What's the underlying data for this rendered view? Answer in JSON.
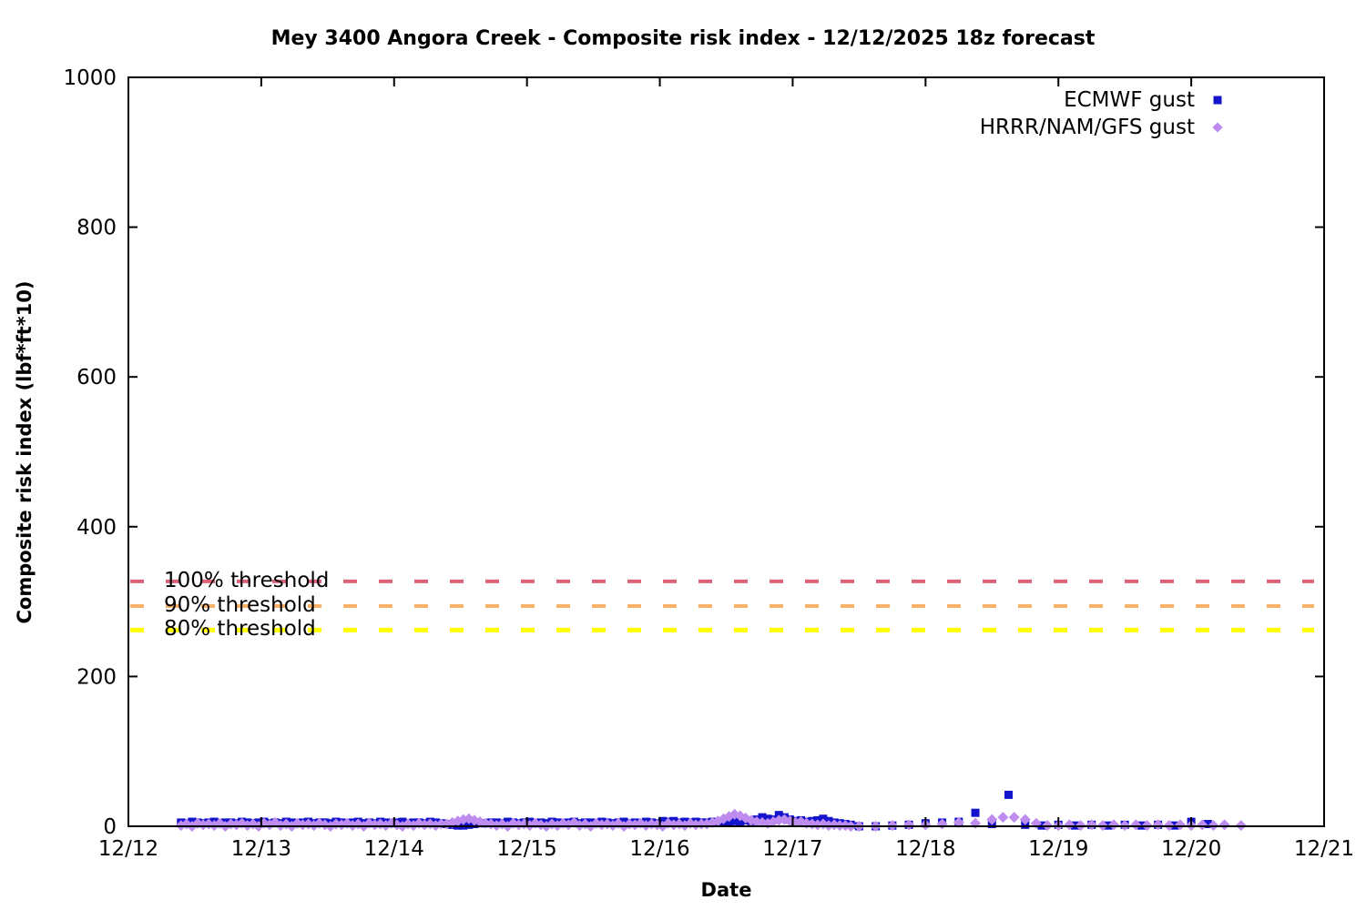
{
  "title": "Mey 3400 Angora Creek - Composite risk index - 12/12/2025 18z forecast",
  "chart_data": {
    "type": "scatter",
    "title": "Mey 3400 Angora Creek - Composite risk index - 12/12/2025 18z forecast",
    "xlabel": "Date",
    "ylabel": "Composite risk index (lbf*ft*10)",
    "ylim": [
      0,
      1000
    ],
    "yticks": [
      0,
      200,
      400,
      600,
      800,
      1000
    ],
    "xlim_days": [
      0,
      9
    ],
    "xtick_labels": [
      "12/12",
      "12/13",
      "12/14",
      "12/15",
      "12/16",
      "12/17",
      "12/18",
      "12/19",
      "12/20",
      "12/21"
    ],
    "x_unit": "days after 12/12 00:00",
    "grid": false,
    "legend_position": "top-right-inside",
    "threshold_lines": [
      {
        "label": "100% threshold",
        "value": 327,
        "color": "#DE6277",
        "dash": [
          15,
          24
        ],
        "width": 4
      },
      {
        "label": "90% threshold",
        "value": 294,
        "color": "#F8B169",
        "dash": [
          15,
          24
        ],
        "width": 4
      },
      {
        "label": "80% threshold",
        "value": 262,
        "color": "#FFFF00",
        "dash": [
          15,
          24
        ],
        "width": 5
      }
    ],
    "series": [
      {
        "name": "ECMWF gust",
        "marker": "square",
        "color": "#1414CC",
        "dense": {
          "t0": 0.396,
          "dt": 0.0416667,
          "values": [
            5,
            4,
            6,
            5,
            4,
            5,
            6,
            4,
            5,
            5,
            4,
            6,
            5,
            4,
            5,
            6,
            4,
            5,
            4,
            6,
            5,
            4,
            5,
            6,
            4,
            5,
            5,
            4,
            6,
            5,
            4,
            5,
            6,
            4,
            5,
            4,
            6,
            5,
            4,
            5,
            6,
            4,
            5,
            5,
            4,
            6,
            5,
            4,
            3,
            2,
            1,
            1,
            2,
            3,
            4,
            4,
            5,
            5,
            4,
            6,
            5,
            4,
            5,
            6,
            4,
            5,
            4,
            6,
            5,
            4,
            5,
            6,
            4,
            5,
            5,
            4,
            6,
            5,
            4,
            5,
            6,
            4,
            5,
            4,
            6,
            5,
            4,
            7,
            6,
            7,
            5,
            6,
            5,
            6,
            5,
            5,
            6,
            5,
            6,
            6,
            7,
            6,
            8,
            7,
            9,
            12,
            10,
            9,
            15,
            12,
            9,
            7,
            8,
            6,
            7,
            8,
            10,
            7,
            5,
            4,
            3,
            2
          ]
        },
        "sparse": [
          [
            5.5,
            0
          ],
          [
            5.625,
            0
          ],
          [
            5.75,
            1
          ],
          [
            5.875,
            2
          ],
          [
            6.0,
            4
          ],
          [
            6.125,
            5
          ],
          [
            6.25,
            6
          ],
          [
            6.375,
            18
          ],
          [
            6.5,
            3
          ],
          [
            6.625,
            42
          ],
          [
            6.75,
            2
          ],
          [
            6.875,
            1
          ],
          [
            7.0,
            2
          ],
          [
            7.125,
            1
          ],
          [
            7.25,
            2
          ],
          [
            7.375,
            1
          ],
          [
            7.5,
            2
          ],
          [
            7.625,
            1
          ],
          [
            7.75,
            2
          ],
          [
            7.875,
            1
          ],
          [
            8.0,
            6
          ],
          [
            8.125,
            3
          ]
        ]
      },
      {
        "name": "HRRR/NAM/GFS gust",
        "marker": "diamond",
        "color": "#BE8CEE",
        "dense": {
          "t0": 0.396,
          "dt": 0.0416667,
          "values": [
            1,
            3,
            0,
            4,
            2,
            3,
            1,
            4,
            0,
            3,
            2,
            4,
            1,
            3,
            0,
            4,
            2,
            5,
            1,
            3,
            0,
            4,
            2,
            3,
            1,
            4,
            2,
            0,
            3,
            2,
            4,
            1,
            3,
            0,
            4,
            2,
            3,
            1,
            4,
            2,
            0,
            3,
            1,
            4,
            2,
            3,
            1,
            3,
            3,
            5,
            7,
            9,
            10,
            8,
            6,
            4,
            3,
            1,
            3,
            0,
            4,
            2,
            3,
            1,
            4,
            2,
            0,
            3,
            1,
            4,
            2,
            5,
            1,
            3,
            0,
            4,
            2,
            3,
            1,
            4,
            0,
            3,
            2,
            4,
            1,
            3,
            2,
            0,
            4,
            2,
            3,
            1,
            4,
            2,
            3,
            3,
            5,
            7,
            10,
            13,
            16,
            14,
            11,
            8,
            6,
            5,
            4,
            6,
            8,
            9,
            7,
            5,
            6,
            4,
            3,
            2,
            3,
            1,
            2,
            1,
            1,
            0
          ]
        },
        "sparse": [
          [
            5.5,
            0
          ],
          [
            5.625,
            0
          ],
          [
            5.75,
            1
          ],
          [
            5.875,
            2
          ],
          [
            6.0,
            2
          ],
          [
            6.125,
            3
          ],
          [
            6.25,
            5
          ],
          [
            6.375,
            4
          ],
          [
            6.5,
            9
          ],
          [
            6.583,
            12
          ],
          [
            6.667,
            12
          ],
          [
            6.75,
            9
          ],
          [
            6.833,
            4
          ],
          [
            6.917,
            1
          ],
          [
            7.0,
            1
          ],
          [
            7.083,
            2
          ],
          [
            7.167,
            1
          ],
          [
            7.25,
            2
          ],
          [
            7.333,
            1
          ],
          [
            7.417,
            2
          ],
          [
            7.5,
            1
          ],
          [
            7.583,
            2
          ],
          [
            7.667,
            1
          ],
          [
            7.75,
            2
          ],
          [
            7.833,
            1
          ],
          [
            7.917,
            2
          ],
          [
            8.0,
            1
          ],
          [
            8.083,
            2
          ],
          [
            8.167,
            1
          ],
          [
            8.25,
            2
          ],
          [
            8.375,
            1
          ]
        ]
      }
    ]
  }
}
